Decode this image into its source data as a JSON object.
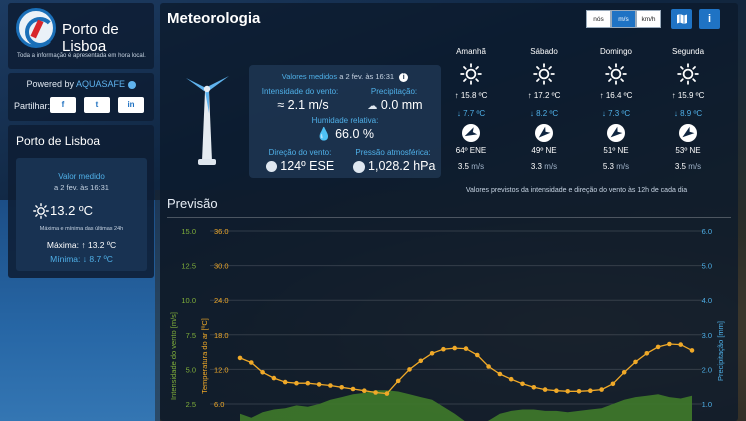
{
  "brand": {
    "title": "Porto de Lisboa",
    "note": "Toda a informação é apresentada em hora local."
  },
  "powered": {
    "label": "Powered by",
    "brand": "AQUASAFE",
    "share_label": "Partilhar:",
    "share": [
      "f",
      "t",
      "in"
    ]
  },
  "station": {
    "title": "Porto de Lisboa",
    "valor_medido": "Valor medido",
    "date": "a 2 fev. às 16:31",
    "temp": "13.2 ºC",
    "minmax_note": "Máxima e mínima das últimas 24h",
    "max_label": "Máxima:",
    "max_value": "13.2 ºC",
    "min_label": "Mínima:",
    "min_value": "8.7 ºC"
  },
  "main": {
    "title": "Meteorologia",
    "units": [
      "nós",
      "m/s",
      "km/h"
    ],
    "active_unit": "m/s",
    "map_icon": "map-icon",
    "info_icon": "info-icon"
  },
  "measured": {
    "header": "Valores medidos",
    "date": "a 2 fev. às 16:31",
    "wind_label": "Intensidade do vento:",
    "wind_value": "2.1 m/s",
    "precip_label": "Precipitação:",
    "precip_value": "0.0 mm",
    "humidity_label": "Humidade relativa:",
    "humidity_value": "66.0 %",
    "dir_label": "Direção do vento:",
    "dir_value": "124º ESE",
    "pressure_label": "Pressão atmosférica:",
    "pressure_value": "1,028.2 hPa"
  },
  "forecast": {
    "days": [
      {
        "name": "Amanhã",
        "max": "15.8 ºC",
        "min": "7.7 ºC",
        "dir": "64º ENE",
        "dir_deg": 64,
        "speed": "3.5",
        "unit": "m/s"
      },
      {
        "name": "Sábado",
        "max": "17.2 ºC",
        "min": "8.2 ºC",
        "dir": "49º NE",
        "dir_deg": 49,
        "speed": "3.3",
        "unit": "m/s"
      },
      {
        "name": "Domingo",
        "max": "16.4 ºC",
        "min": "7.3 ºC",
        "dir": "51º NE",
        "dir_deg": 51,
        "speed": "5.3",
        "unit": "m/s"
      },
      {
        "name": "Segunda",
        "max": "15.9 ºC",
        "min": "8.9 ºC",
        "dir": "53º NE",
        "dir_deg": 53,
        "speed": "3.5",
        "unit": "m/s"
      }
    ],
    "note": "Valores previstos da intensidade e direção do vento às 12h de cada dia"
  },
  "previsao_title": "Previsão",
  "chart_data": {
    "type": "line",
    "wind_axis": {
      "label": "Intensidade do vento [m/s]",
      "ticks": [
        15.0,
        12.5,
        10.0,
        7.5,
        5.0,
        2.5
      ],
      "color": "#7fae3a"
    },
    "temp_axis": {
      "label": "Temperatura do ar [ºC]",
      "ticks": [
        36.0,
        30.0,
        24.0,
        18.0,
        12.0,
        6.0
      ],
      "range": [
        0,
        36
      ],
      "color": "#f0a928"
    },
    "precip_axis": {
      "label": "Precipitação [mm]",
      "ticks": [
        6.0,
        5.0,
        4.0,
        3.0,
        2.0,
        1.0
      ],
      "color": "#4fb0e8"
    },
    "temperature": [
      14.0,
      13.2,
      11.5,
      10.5,
      9.8,
      9.6,
      9.6,
      9.4,
      9.2,
      8.9,
      8.6,
      8.3,
      8.0,
      7.8,
      10.0,
      12.0,
      13.5,
      14.8,
      15.5,
      15.7,
      15.6,
      14.5,
      12.5,
      11.2,
      10.3,
      9.5,
      8.9,
      8.5,
      8.3,
      8.2,
      8.2,
      8.3,
      8.5,
      9.5,
      11.5,
      13.3,
      14.8,
      15.9,
      16.4,
      16.3,
      15.3
    ],
    "wind": [
      1.8,
      1.5,
      1.9,
      2.1,
      2.2,
      2.4,
      2.3,
      2.5,
      2.8,
      3.0,
      3.2,
      3.3,
      3.5,
      3.5,
      3.4,
      3.2,
      3.0,
      2.8,
      2.3,
      1.8,
      1.2,
      1.0,
      1.3,
      1.8,
      2.0,
      2.1,
      2.1,
      2.0,
      2.0,
      1.9,
      2.0,
      2.1,
      2.2,
      2.5,
      2.8,
      3.0,
      3.1,
      3.2,
      3.0,
      2.9,
      3.1
    ]
  }
}
